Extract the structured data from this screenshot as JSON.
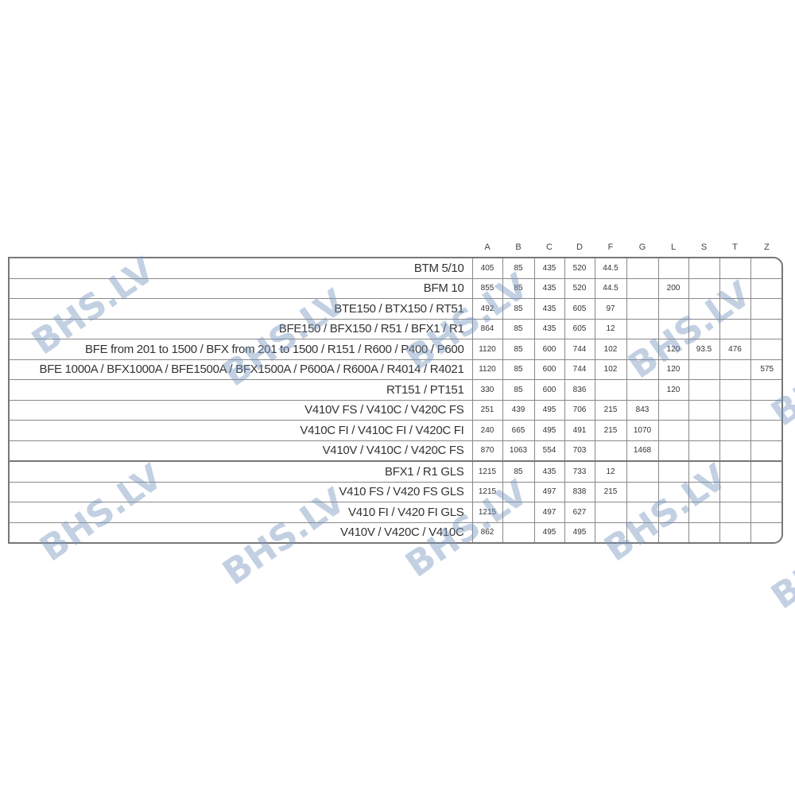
{
  "columns": [
    "A",
    "B",
    "C",
    "D",
    "F",
    "G",
    "L",
    "S",
    "T",
    "Z"
  ],
  "rows": [
    {
      "label": "BTM 5/10",
      "values": [
        "405",
        "85",
        "435",
        "520",
        "44.5",
        "",
        "",
        "",
        "",
        ""
      ]
    },
    {
      "label": "BFM 10",
      "values": [
        "855",
        "85",
        "435",
        "520",
        "44.5",
        "",
        "200",
        "",
        "",
        ""
      ]
    },
    {
      "label": "BTE150 / BTX150 / RT51",
      "values": [
        "492",
        "85",
        "435",
        "605",
        "97",
        "",
        "",
        "",
        "",
        ""
      ]
    },
    {
      "label": "BFE150 / BFX150 / R51 / BFX1 / R1",
      "values": [
        "864",
        "85",
        "435",
        "605",
        "12",
        "",
        "",
        "",
        "",
        ""
      ]
    },
    {
      "label": "BFE from 201 to 1500 / BFX from 201 to 1500 / R151 / R600 / P400 / P600",
      "values": [
        "1120",
        "85",
        "600",
        "744",
        "102",
        "",
        "120",
        "93.5",
        "476",
        ""
      ]
    },
    {
      "label": "BFE 1000A / BFX1000A / BFE1500A / BFX1500A / P600A / R600A / R4014 / R4021",
      "values": [
        "1120",
        "85",
        "600",
        "744",
        "102",
        "",
        "120",
        "",
        "",
        "575"
      ]
    },
    {
      "label": "RT151 / PT151",
      "values": [
        "330",
        "85",
        "600",
        "836",
        "",
        "",
        "120",
        "",
        "",
        ""
      ]
    },
    {
      "label": "V410V FS / V410C / V420C FS",
      "values": [
        "251",
        "439",
        "495",
        "706",
        "215",
        "843",
        "",
        "",
        "",
        ""
      ]
    },
    {
      "label": "V410C FI / V410C FI / V420C FI",
      "values": [
        "240",
        "665",
        "495",
        "491",
        "215",
        "1070",
        "",
        "",
        "",
        ""
      ]
    },
    {
      "label": "V410V / V410C / V420C FS",
      "values": [
        "870",
        "1063",
        "554",
        "703",
        "",
        "1468",
        "",
        "",
        "",
        ""
      ]
    },
    {
      "label": "BFX1 / R1 GLS",
      "values": [
        "1215",
        "85",
        "435",
        "733",
        "12",
        "",
        "",
        "",
        "",
        ""
      ]
    },
    {
      "label": "V410 FS / V420 FS GLS",
      "values": [
        "1215",
        "",
        "497",
        "838",
        "215",
        "",
        "",
        "",
        "",
        ""
      ]
    },
    {
      "label": "V410 FI / V420 FI GLS",
      "values": [
        "1215",
        "",
        "497",
        "627",
        "",
        "",
        "",
        "",
        "",
        ""
      ]
    },
    {
      "label": "V410V / V420C / V410C",
      "values": [
        "862",
        "",
        "495",
        "495",
        "",
        "",
        "",
        "",
        "",
        ""
      ]
    }
  ],
  "watermark": "BHS.LV"
}
